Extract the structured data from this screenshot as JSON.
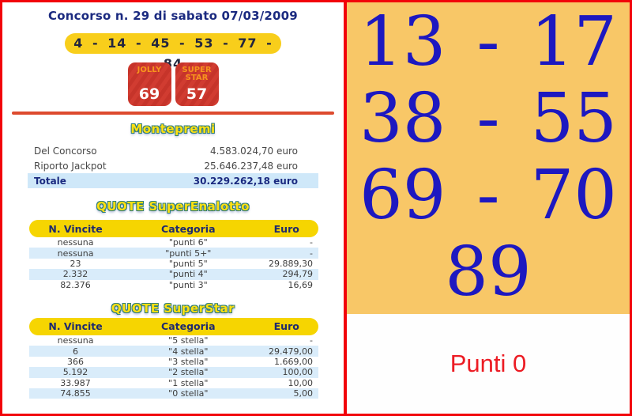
{
  "header": {
    "title": "Concorso n. 29 di sabato 07/03/2009",
    "winning_numbers": "4 - 14 - 45 - 53 - 77 - 84",
    "jolly": {
      "label": "JOLLY",
      "value": "69"
    },
    "superstar": {
      "label": "SUPER STAR",
      "value": "57"
    }
  },
  "montepremi": {
    "title": "Montepremi",
    "rows": [
      {
        "label": "Del Concorso",
        "value": "4.583.024,70 euro"
      },
      {
        "label": "Riporto Jackpot",
        "value": "25.646.237,48 euro"
      },
      {
        "label": "Totale",
        "value": "30.229.262,18 euro"
      }
    ]
  },
  "quote_superenalotto": {
    "title": "QUOTE SuperEnalotto",
    "headers": [
      "N. Vincite",
      "Categoria",
      "Euro"
    ],
    "rows": [
      {
        "vincite": "nessuna",
        "categoria": "\"punti 6\"",
        "euro": "-"
      },
      {
        "vincite": "nessuna",
        "categoria": "\"punti 5+\"",
        "euro": "-"
      },
      {
        "vincite": "23",
        "categoria": "\"punti 5\"",
        "euro": "29.889,30"
      },
      {
        "vincite": "2.332",
        "categoria": "\"punti 4\"",
        "euro": "294,79"
      },
      {
        "vincite": "82.376",
        "categoria": "\"punti 3\"",
        "euro": "16,69"
      }
    ]
  },
  "quote_superstar": {
    "title": "QUOTE SuperStar",
    "headers": [
      "N. Vincite",
      "Categoria",
      "Euro"
    ],
    "rows": [
      {
        "vincite": "nessuna",
        "categoria": "\"5 stella\"",
        "euro": "-"
      },
      {
        "vincite": "6",
        "categoria": "\"4 stella\"",
        "euro": "29.479,00"
      },
      {
        "vincite": "366",
        "categoria": "\"3 stella\"",
        "euro": "1.669,00"
      },
      {
        "vincite": "5.192",
        "categoria": "\"2 stella\"",
        "euro": "100,00"
      },
      {
        "vincite": "33.987",
        "categoria": "\"1 stella\"",
        "euro": "10,00"
      },
      {
        "vincite": "74.855",
        "categoria": "\"0 stella\"",
        "euro": "5,00"
      }
    ]
  },
  "right_panel": {
    "pairs": [
      {
        "a": "13",
        "sep": "-",
        "b": "17"
      },
      {
        "a": "38",
        "sep": "-",
        "b": "55"
      },
      {
        "a": "69",
        "sep": "-",
        "b": "70"
      }
    ],
    "last_number": "89",
    "punti_label": "Punti 0"
  },
  "colors": {
    "border_red": "#f2020a",
    "divider_orange_red": "#dd4a2e",
    "pill_yellow": "#f8ce1b",
    "table_header_yellow": "#f6d501",
    "stripe_light_blue": "#d9ecfa",
    "total_row_blue": "#cfe8f9",
    "title_navy": "#1b2a80",
    "section_title_yellow": "#ffe011",
    "section_title_outline_teal": "#2e7d7a",
    "badge_red": "#d13c31",
    "badge_label_orange": "#f7941d",
    "right_panel_orange": "#f8c767",
    "drawn_number_blue": "#1d18c0",
    "punti_red": "#ec1c24"
  }
}
